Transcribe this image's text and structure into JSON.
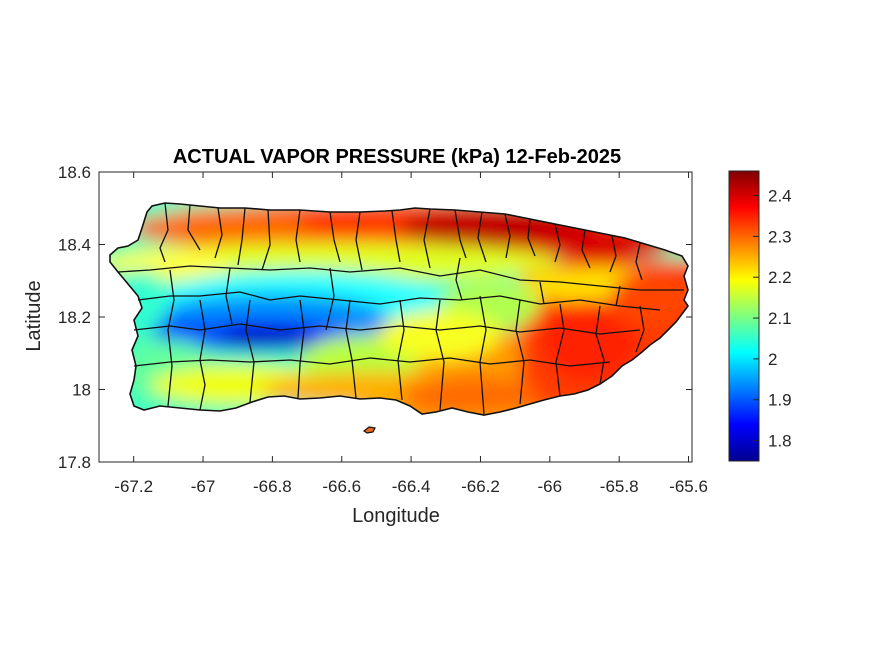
{
  "chart_data": {
    "type": "heatmap",
    "title": "ACTUAL VAPOR PRESSURE (kPa) 12-Feb-2025",
    "xlabel": "Longitude",
    "ylabel": "Latitude",
    "xlim": [
      -67.3,
      -65.59
    ],
    "ylim": [
      17.8,
      18.6
    ],
    "xticks": [
      -67.2,
      -67,
      -66.8,
      -66.6,
      -66.4,
      -66.2,
      -66,
      -65.8,
      -65.6
    ],
    "xtick_labels": [
      "-67.2",
      "-67",
      "-66.8",
      "-66.6",
      "-66.4",
      "-66.2",
      "-66",
      "-65.8",
      "-65.6"
    ],
    "yticks": [
      17.8,
      18,
      18.2,
      18.4,
      18.6
    ],
    "ytick_labels": [
      "17.8",
      "18",
      "18.2",
      "18.4",
      "18.6"
    ],
    "colorbar": {
      "colormap": "jet",
      "range": [
        1.75,
        2.46
      ],
      "ticks": [
        1.8,
        1.9,
        2,
        2.1,
        2.2,
        2.3,
        2.4
      ],
      "tick_labels": [
        "1.8",
        "1.9",
        "2",
        "2.1",
        "2.2",
        "2.3",
        "2.4"
      ]
    },
    "grid": false,
    "region": "Puerto Rico municipalities",
    "field_description": "Lowest values (~1.8 kPa) over the central-western mountains near -66.8 lon, 18.15 lat; highest values (~2.4 kPa) along the north-central coast between -66.4 and -65.9 lon and in the east; ~2.3 kPa along the southern coast; ~2.0-2.1 kPa in the west."
  }
}
